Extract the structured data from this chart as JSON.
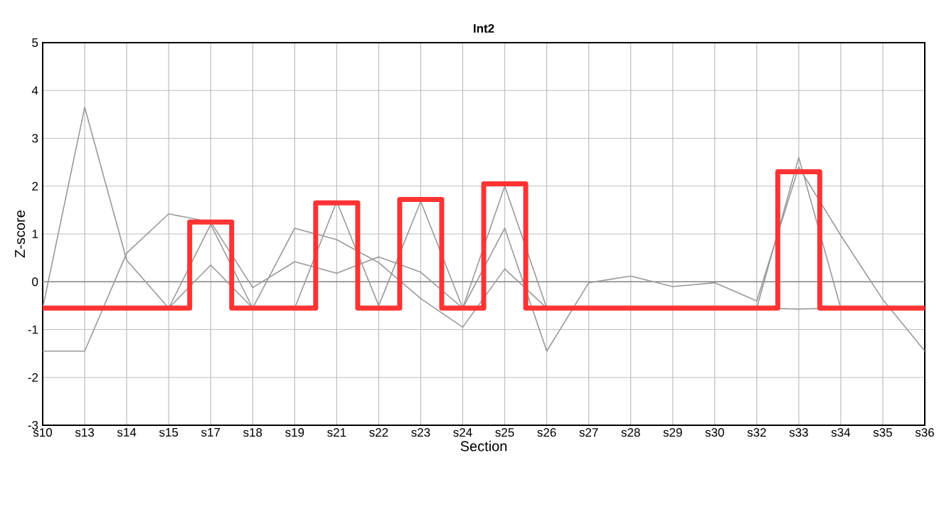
{
  "chart_data": {
    "type": "line",
    "title": "Int2",
    "xlabel": "Section",
    "ylabel": "Z-score",
    "categories": [
      "s10",
      "s13",
      "s14",
      "s15",
      "s17",
      "s18",
      "s19",
      "s21",
      "s22",
      "s23",
      "s24",
      "s25",
      "s26",
      "s27",
      "s28",
      "s29",
      "s30",
      "s32",
      "s33",
      "s34",
      "s35",
      "s36"
    ],
    "series": [
      {
        "color": "#999999",
        "values": [
          -0.55,
          3.65,
          0.45,
          -0.55,
          1.2,
          -0.55,
          -0.55,
          1.68,
          -0.5,
          1.68,
          -0.55,
          2.0,
          -0.55,
          -0.55,
          -0.55,
          -0.55,
          -0.55,
          -0.55,
          2.6,
          -0.55,
          -0.55,
          null
        ]
      },
      {
        "color": "#999999",
        "values": [
          -1.45,
          -1.45,
          0.6,
          1.42,
          1.25,
          -0.12,
          0.42,
          0.18,
          0.52,
          0.2,
          -0.55,
          1.12,
          -1.45,
          -0.02,
          0.12,
          -0.1,
          -0.02,
          -0.4,
          2.4,
          0.97,
          -0.37,
          -1.45
        ]
      },
      {
        "color": "#999999",
        "values": [
          null,
          null,
          null,
          -0.55,
          0.35,
          -0.55,
          1.12,
          0.88,
          0.4,
          -0.35,
          -0.95,
          0.27,
          -0.55,
          -0.55,
          -0.55,
          -0.55,
          -0.55,
          -0.55,
          -0.57,
          -0.55,
          -0.55,
          null
        ]
      },
      {
        "type": "step",
        "color": "#ff3333",
        "values": [
          -0.55,
          -0.55,
          -0.55,
          -0.55,
          1.25,
          -0.55,
          -0.55,
          1.65,
          -0.55,
          1.72,
          -0.55,
          2.05,
          -0.55,
          -0.55,
          -0.55,
          -0.55,
          -0.55,
          -0.55,
          2.3,
          -0.55,
          -0.55,
          -0.55
        ]
      }
    ],
    "ylim": [
      -3,
      5
    ],
    "yticks": [
      -3,
      -2,
      -1,
      0,
      1,
      2,
      3,
      4,
      5
    ],
    "grid": true,
    "ref_lines": [
      {
        "axis": "y",
        "value": 0,
        "color": "#888888"
      }
    ]
  }
}
